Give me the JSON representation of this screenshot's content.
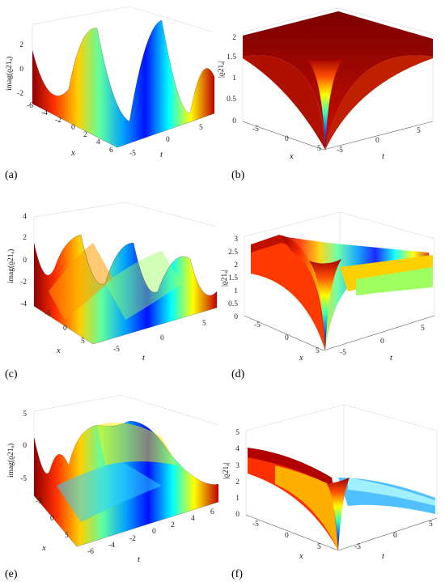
{
  "chart_data": [
    {
      "type": "surface",
      "panel": "(a)",
      "zlabel": "imag(ϱ21ₐ)",
      "xlabel": "x",
      "ylabel": "t",
      "zlim": [
        -2,
        2
      ],
      "x_ticks": [
        "-6",
        "-4",
        "-2",
        "0",
        "2",
        "4",
        "6"
      ],
      "t_ticks": [
        "-5",
        "0",
        "5"
      ],
      "z_ticks": [
        "2",
        "0",
        "-2"
      ],
      "description_values": {
        "amplitude": 2,
        "periodic_in": "x and t"
      }
    },
    {
      "type": "surface",
      "panel": "(b)",
      "zlabel": "|ϱ21ₐ|",
      "xlabel": "x",
      "ylabel": "t",
      "zlim": [
        0,
        2
      ],
      "x_ticks": [
        "-5",
        "0",
        "5"
      ],
      "t_ticks": [
        "-5",
        "0",
        "5"
      ],
      "z_ticks": [
        "2",
        "1.5",
        "1",
        "0.5",
        "0"
      ],
      "description_values": {
        "plateau": 2,
        "minimum": 0
      }
    },
    {
      "type": "surface",
      "panel": "(c)",
      "zlabel": "imag(ϱ21ₐ)",
      "xlabel": "x",
      "ylabel": "t",
      "zlim": [
        -4,
        4
      ],
      "x_ticks": [
        "-5",
        "0",
        "5"
      ],
      "t_ticks": [
        "-5",
        "0",
        "5"
      ],
      "z_ticks": [
        "4",
        "2",
        "0",
        "-2",
        "-4"
      ]
    },
    {
      "type": "surface",
      "panel": "(d)",
      "zlabel": "|ϱ21ₐ|",
      "xlabel": "x",
      "ylabel": "t",
      "zlim": [
        0,
        3
      ],
      "x_ticks": [
        "-5",
        "0",
        "5"
      ],
      "t_ticks": [
        "-5",
        "0",
        "5"
      ],
      "z_ticks": [
        "3",
        "2.5",
        "2",
        "1.5",
        "1",
        "0.5",
        "0"
      ]
    },
    {
      "type": "surface",
      "panel": "(e)",
      "zlabel": "imag(ϱ21ₐ)",
      "xlabel": "x",
      "ylabel": "t",
      "zlim": [
        -5,
        5
      ],
      "x_ticks": [
        "-5",
        "0",
        "5"
      ],
      "t_ticks": [
        "-6",
        "-4",
        "-2",
        "0",
        "2",
        "4",
        "6"
      ],
      "z_ticks": [
        "5",
        "0",
        "-5"
      ]
    },
    {
      "type": "surface",
      "panel": "(f)",
      "zlabel": "|ϱ21ₐ|",
      "xlabel": "x",
      "ylabel": "t",
      "zlim": [
        0,
        5
      ],
      "x_ticks": [
        "-5",
        "0",
        "5"
      ],
      "t_ticks": [
        "-5",
        "0",
        "5"
      ],
      "z_ticks": [
        "5",
        "4",
        "3",
        "2",
        "1",
        "0"
      ]
    }
  ],
  "colors": {
    "colormap": "jet",
    "deep_blue": "#00008f",
    "cyan": "#00ffff",
    "yellow": "#ffff00",
    "dark_red": "#800000"
  }
}
